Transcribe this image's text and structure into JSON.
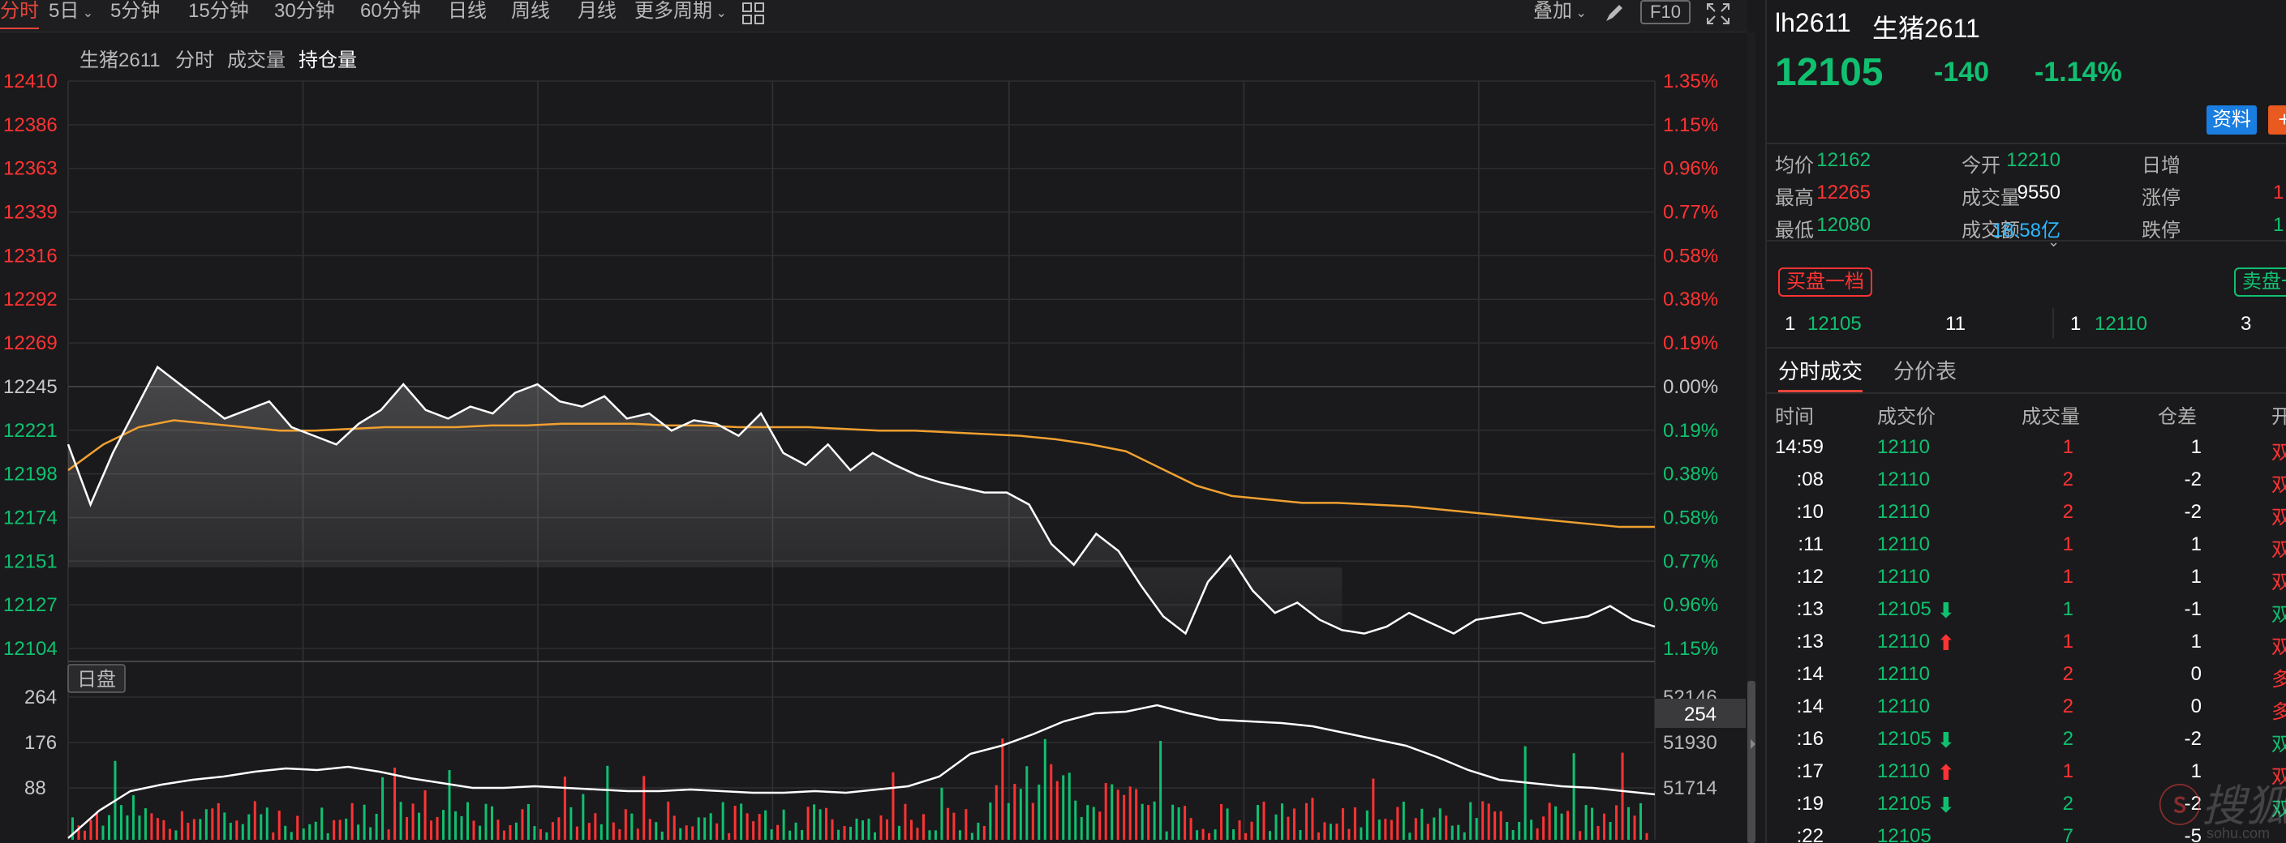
{
  "toolbar": {
    "periods": [
      "分时",
      "5日",
      "5分钟",
      "15分钟",
      "30分钟",
      "60分钟",
      "日线",
      "周线",
      "月线",
      "更多周期"
    ],
    "overlay_label": "叠加",
    "f10_label": "F10",
    "icons": [
      "chevron-down-icon",
      "grid-icon",
      "pen-icon",
      "fullscreen-icon"
    ]
  },
  "chart": {
    "tabs": [
      "生猪2611",
      "分时",
      "成交量",
      "持仓量"
    ],
    "active_tab": "持仓量",
    "price_axis_left": [
      "12410",
      "12386",
      "12363",
      "12339",
      "12316",
      "12292",
      "12269",
      "12245",
      "12221",
      "12198",
      "12174",
      "12151",
      "12127",
      "12104"
    ],
    "percent_axis_right": [
      "1.35%",
      "1.15%",
      "0.96%",
      "0.77%",
      "0.58%",
      "0.38%",
      "0.19%",
      "0.00%",
      "0.19%",
      "0.38%",
      "0.58%",
      "0.77%",
      "0.96%",
      "1.15%"
    ],
    "sub_chart": {
      "label": "日盘",
      "volume_axis_left": [
        "264",
        "176",
        "88"
      ],
      "oi_axis_right": [
        "52146",
        "51930",
        "51714"
      ],
      "current_volume": "254"
    },
    "colors": {
      "up": "#ff3333",
      "down": "#10c070",
      "price_line": "#ffffff",
      "avg_line": "#f0a030",
      "bg": "#1a1a1c"
    }
  },
  "chart_data": {
    "type": "line",
    "title": "",
    "ylim": [
      12080,
      12410
    ],
    "series": [
      {
        "name": "",
        "values": [
          12210,
          12175,
          12205,
          12230,
          12255,
          12245,
          12235,
          12225,
          12230,
          12235,
          12220,
          12215,
          12210,
          12222,
          12230,
          12245,
          12230,
          12225,
          12232,
          12228,
          12240,
          12245,
          12235,
          12232,
          12238,
          12225,
          12228,
          12218,
          12224,
          12222,
          12215,
          12228,
          12205,
          12198,
          12210,
          12195,
          12205,
          12198,
          12192,
          12188,
          12185,
          12182,
          12182,
          12175,
          12152,
          12140,
          12158,
          12148,
          12128,
          12110,
          12100,
          12130,
          12145,
          12125,
          12112,
          12118,
          12108,
          12102,
          12100,
          12104,
          12112,
          12106,
          12100,
          12108,
          12110,
          12112,
          12106,
          12108,
          12110,
          12116,
          12108,
          12104
        ]
      },
      {
        "name": "",
        "values": [
          12195,
          12210,
          12220,
          12224,
          12222,
          12220,
          12218,
          12218,
          12219,
          12220,
          12220,
          12220,
          12221,
          12221,
          12222,
          12222,
          12222,
          12221,
          12221,
          12220,
          12220,
          12220,
          12219,
          12218,
          12218,
          12217,
          12216,
          12215,
          12213,
          12210,
          12206,
          12196,
          12186,
          12180,
          12178,
          12176,
          12176,
          12175,
          12174,
          12172,
          12170,
          12168,
          12166,
          12164,
          12162,
          12162
        ]
      }
    ]
  },
  "panel": {
    "code": "lh2611",
    "name": "生猪2611",
    "price": "12105",
    "change": "-140",
    "change_pct": "-1.14%",
    "info_button": "资料",
    "plus_button": "+",
    "stats": [
      {
        "label": "均价",
        "value": "12162",
        "color": "green"
      },
      {
        "label": "今开",
        "value": "12210",
        "color": "green"
      },
      {
        "label": "日增",
        "value": "",
        "color": "white"
      },
      {
        "label": "最高",
        "value": "12265",
        "color": "red"
      },
      {
        "label": "成交量",
        "value": "9550",
        "color": "white"
      },
      {
        "label": "涨停",
        "value": "1",
        "color": "red"
      },
      {
        "label": "最低",
        "value": "12080",
        "color": "green"
      },
      {
        "label": "成交额",
        "value": "18.58亿",
        "color": "cyan"
      },
      {
        "label": "跌停",
        "value": "1",
        "color": "green"
      }
    ],
    "order_book": {
      "buy_label": "买盘一档",
      "sell_label": "卖盘一",
      "buy": {
        "level": "1",
        "price": "12105",
        "volume": "11"
      },
      "sell": {
        "level": "1",
        "price": "12110",
        "volume": "3"
      }
    },
    "trade_tabs": [
      "分时成交",
      "分价表"
    ],
    "trade_headers": [
      "时间",
      "成交价",
      "成交量",
      "仓差",
      "开"
    ],
    "trades": [
      {
        "time": "14:59",
        "price": "12110",
        "arrow": "",
        "vol": "1",
        "vol_color": "red",
        "oi": "1",
        "flag": "双"
      },
      {
        "time": ":08",
        "price": "12110",
        "arrow": "",
        "vol": "2",
        "vol_color": "red",
        "oi": "-2",
        "flag": "双"
      },
      {
        "time": ":10",
        "price": "12110",
        "arrow": "",
        "vol": "2",
        "vol_color": "red",
        "oi": "-2",
        "flag": "双"
      },
      {
        "time": ":11",
        "price": "12110",
        "arrow": "",
        "vol": "1",
        "vol_color": "red",
        "oi": "1",
        "flag": "双"
      },
      {
        "time": ":12",
        "price": "12110",
        "arrow": "",
        "vol": "1",
        "vol_color": "red",
        "oi": "1",
        "flag": "双"
      },
      {
        "time": ":13",
        "price": "12105",
        "arrow": "⬇",
        "vol": "1",
        "vol_color": "green",
        "oi": "-1",
        "flag": "双"
      },
      {
        "time": ":13",
        "price": "12110",
        "arrow": "⬆",
        "vol": "1",
        "vol_color": "red",
        "oi": "1",
        "flag": "双"
      },
      {
        "time": ":14",
        "price": "12110",
        "arrow": "",
        "vol": "2",
        "vol_color": "red",
        "oi": "0",
        "flag": "多"
      },
      {
        "time": ":14",
        "price": "12110",
        "arrow": "",
        "vol": "2",
        "vol_color": "red",
        "oi": "0",
        "flag": "多"
      },
      {
        "time": ":16",
        "price": "12105",
        "arrow": "⬇",
        "vol": "2",
        "vol_color": "green",
        "oi": "-2",
        "flag": "双"
      },
      {
        "time": ":17",
        "price": "12110",
        "arrow": "⬆",
        "vol": "1",
        "vol_color": "red",
        "oi": "1",
        "flag": "双"
      },
      {
        "time": ":19",
        "price": "12105",
        "arrow": "⬇",
        "vol": "2",
        "vol_color": "green",
        "oi": "-2",
        "flag": "双"
      },
      {
        "time": ":22",
        "price": "12105",
        "arrow": "",
        "vol": "7",
        "vol_color": "green",
        "oi": "-5",
        "flag": ""
      }
    ]
  },
  "watermark": {
    "text": "搜狐",
    "url": "sohu.com"
  }
}
